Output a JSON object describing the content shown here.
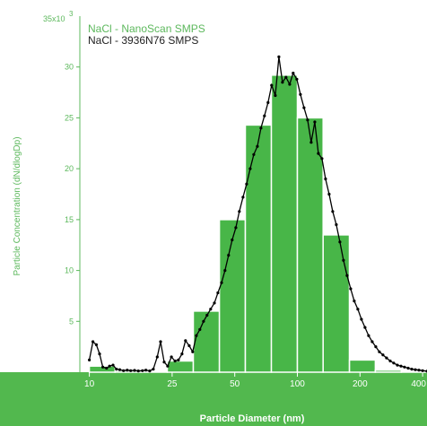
{
  "chart_data": {
    "type": "bar",
    "title": "",
    "xlabel": "Particle Diameter (nm)",
    "ylabel": "Particle Concentration (dN/dlogDp)",
    "y_multiplier_label": "35x10",
    "y_multiplier_exponent": "3",
    "x_scale": "log",
    "xlim": [
      9,
      420
    ],
    "ylim": [
      0,
      35000
    ],
    "x_ticks": [
      10,
      25,
      50,
      100,
      200,
      400
    ],
    "x_tick_labels": [
      "10",
      "25",
      "50",
      "100",
      "200",
      "400"
    ],
    "y_ticks": [
      5000,
      10000,
      15000,
      20000,
      25000,
      30000
    ],
    "y_tick_labels": [
      "5",
      "10",
      "15",
      "20",
      "25",
      "30"
    ],
    "grid": false,
    "legend_position": "top-left",
    "colors": {
      "bars": "#48b648",
      "line": "#000000",
      "axis_band": "#52b84e",
      "y_axis": "#5cb85c"
    },
    "series": [
      {
        "name": "NaCl - NanoScan SMPS",
        "type": "bar",
        "bins": [
          {
            "lo": 10.0,
            "hi": 13.3,
            "value": 600
          },
          {
            "lo": 13.3,
            "hi": 17.8,
            "value": 150
          },
          {
            "lo": 17.8,
            "hi": 23.7,
            "value": 100
          },
          {
            "lo": 23.7,
            "hi": 31.6,
            "value": 1100
          },
          {
            "lo": 31.6,
            "hi": 42.2,
            "value": 6000
          },
          {
            "lo": 42.2,
            "hi": 56.2,
            "value": 15000
          },
          {
            "lo": 56.2,
            "hi": 75.0,
            "value": 24300
          },
          {
            "lo": 75.0,
            "hi": 100.0,
            "value": 29200
          },
          {
            "lo": 100.0,
            "hi": 133.0,
            "value": 25000
          },
          {
            "lo": 133.0,
            "hi": 178.0,
            "value": 13500
          },
          {
            "lo": 178.0,
            "hi": 237.0,
            "value": 1200
          },
          {
            "lo": 237.0,
            "hi": 316.0,
            "value": 200
          },
          {
            "lo": 316.0,
            "hi": 420.0,
            "value": 80
          }
        ]
      },
      {
        "name": "NaCl - 3936N76 SMPS",
        "type": "line",
        "points": [
          [
            10.0,
            1200
          ],
          [
            10.4,
            3000
          ],
          [
            10.8,
            2700
          ],
          [
            11.2,
            1800
          ],
          [
            11.6,
            500
          ],
          [
            12.1,
            400
          ],
          [
            12.5,
            600
          ],
          [
            13.0,
            700
          ],
          [
            13.5,
            300
          ],
          [
            14.0,
            250
          ],
          [
            14.6,
            150
          ],
          [
            15.2,
            200
          ],
          [
            15.8,
            150
          ],
          [
            16.5,
            180
          ],
          [
            17.2,
            120
          ],
          [
            18.0,
            150
          ],
          [
            18.7,
            200
          ],
          [
            19.5,
            120
          ],
          [
            20.3,
            300
          ],
          [
            21.2,
            1500
          ],
          [
            22.0,
            3000
          ],
          [
            22.9,
            1000
          ],
          [
            23.8,
            600
          ],
          [
            24.8,
            1500
          ],
          [
            25.8,
            1100
          ],
          [
            26.8,
            1200
          ],
          [
            27.9,
            1800
          ],
          [
            29.0,
            3100
          ],
          [
            30.2,
            2600
          ],
          [
            31.4,
            2000
          ],
          [
            32.7,
            3600
          ],
          [
            34.0,
            4200
          ],
          [
            35.4,
            5000
          ],
          [
            36.8,
            5600
          ],
          [
            38.3,
            6200
          ],
          [
            39.9,
            6800
          ],
          [
            41.5,
            7800
          ],
          [
            43.2,
            8800
          ],
          [
            44.9,
            10000
          ],
          [
            46.7,
            11500
          ],
          [
            48.6,
            13000
          ],
          [
            50.6,
            14200
          ],
          [
            52.6,
            15800
          ],
          [
            54.8,
            17200
          ],
          [
            57.0,
            18500
          ],
          [
            59.3,
            20000
          ],
          [
            61.7,
            21400
          ],
          [
            64.2,
            22200
          ],
          [
            66.8,
            24000
          ],
          [
            69.5,
            25200
          ],
          [
            72.3,
            26500
          ],
          [
            75.2,
            28200
          ],
          [
            78.3,
            27200
          ],
          [
            81.5,
            31000
          ],
          [
            84.8,
            28500
          ],
          [
            88.2,
            29000
          ],
          [
            91.8,
            28300
          ],
          [
            95.5,
            29400
          ],
          [
            99.4,
            28800
          ],
          [
            103.4,
            27300
          ],
          [
            107.6,
            26000
          ],
          [
            112.0,
            24800
          ],
          [
            116.5,
            22600
          ],
          [
            121.3,
            24600
          ],
          [
            126.2,
            21500
          ],
          [
            131.3,
            21000
          ],
          [
            136.6,
            19000
          ],
          [
            142.2,
            17500
          ],
          [
            147.9,
            15800
          ],
          [
            153.9,
            14500
          ],
          [
            160.2,
            12800
          ],
          [
            166.7,
            11000
          ],
          [
            173.4,
            9500
          ],
          [
            180.4,
            8200
          ],
          [
            187.7,
            7000
          ],
          [
            195.4,
            6200
          ],
          [
            203.3,
            5200
          ],
          [
            211.5,
            4400
          ],
          [
            220.1,
            3600
          ],
          [
            229.0,
            3000
          ],
          [
            238.3,
            2500
          ],
          [
            248.0,
            2000
          ],
          [
            258.0,
            1700
          ],
          [
            268.5,
            1400
          ],
          [
            279.4,
            1100
          ],
          [
            290.7,
            900
          ],
          [
            302.5,
            700
          ],
          [
            314.8,
            600
          ],
          [
            327.5,
            500
          ],
          [
            340.8,
            400
          ],
          [
            354.6,
            300
          ],
          [
            369.0,
            250
          ],
          [
            384.0,
            200
          ],
          [
            400.0,
            150
          ],
          [
            420.0,
            100
          ]
        ]
      }
    ]
  }
}
